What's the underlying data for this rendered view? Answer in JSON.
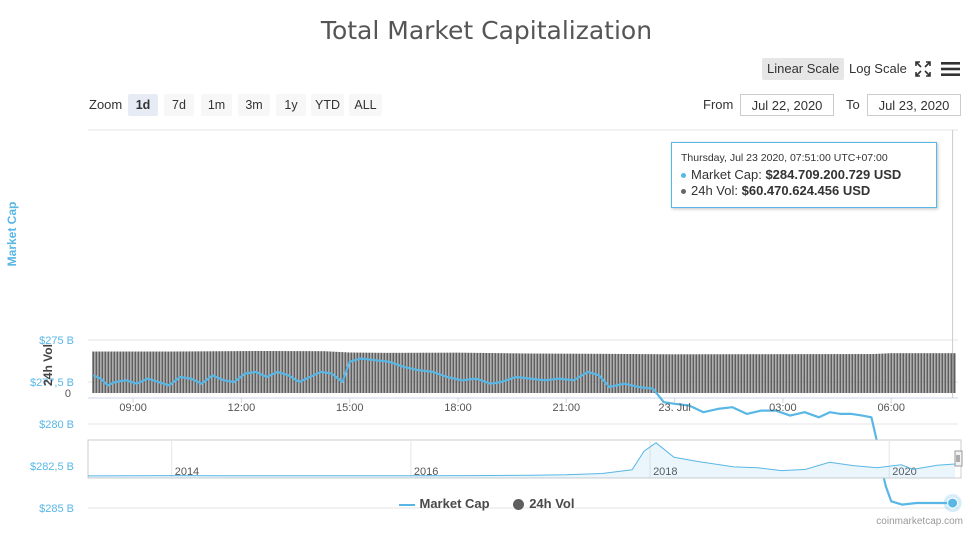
{
  "title": "Total Market Capitalization",
  "scale_buttons": {
    "linear": "Linear Scale",
    "log": "Log Scale"
  },
  "zoom": {
    "label": "Zoom",
    "buttons": [
      "1d",
      "7d",
      "1m",
      "3m",
      "1y",
      "YTD",
      "ALL"
    ],
    "active": "1d"
  },
  "range": {
    "from_label": "From",
    "from_value": "Jul 22, 2020",
    "to_label": "To",
    "to_value": "Jul 23, 2020"
  },
  "tooltip": {
    "date": "Thursday, Jul 23 2020, 07:51:00 UTC+07:00",
    "market_cap_label": "Market Cap:",
    "market_cap_value": "$284.709.200.729 USD",
    "volume_label": "24h Vol:",
    "volume_value": "$60.470.624.456 USD",
    "market_cap_color": "#59b7e6",
    "volume_color": "#666666"
  },
  "legend": {
    "market_cap": "Market Cap",
    "volume": "24h Vol"
  },
  "credit": "coinmarketcap.com",
  "colors": {
    "market_cap": "#59b7e6",
    "volume_bars": "#5f5f5f",
    "grid": "#e6e6e6",
    "axis_blue": "#59b7e6"
  },
  "icons": {
    "expand": "expand-icon",
    "menu": "hamburger-menu-icon"
  },
  "chart_data": {
    "type": "line",
    "title": "Total Market Capitalization",
    "ylabel": "Market Cap",
    "ylabel2": "24h Vol",
    "y_ticks": [
      "$285 B",
      "$282,5 B",
      "$280 B",
      "$277,5 B",
      "$275 B"
    ],
    "y_tick_values": [
      285,
      282.5,
      280,
      277.5,
      275
    ],
    "ylim": [
      275,
      286
    ],
    "y2_ticks": [
      "0"
    ],
    "x_ticks": [
      "09:00",
      "12:00",
      "15:00",
      "18:00",
      "21:00",
      "23. Jul",
      "03:00",
      "06:00"
    ],
    "x_tick_hours": [
      9,
      12,
      15,
      18,
      21,
      24,
      27,
      30
    ],
    "xlim_hours": [
      7.75,
      31.85
    ],
    "series": [
      {
        "name": "Market Cap",
        "unit": "billion USD",
        "x_hours": [
          7.9,
          8.1,
          8.3,
          8.5,
          8.8,
          9.1,
          9.4,
          9.7,
          10.0,
          10.3,
          10.6,
          10.9,
          11.2,
          11.5,
          11.8,
          12.1,
          12.4,
          12.7,
          13.0,
          13.3,
          13.6,
          13.9,
          14.2,
          14.5,
          14.8,
          15.0,
          15.3,
          15.7,
          16.1,
          16.5,
          16.9,
          17.3,
          17.7,
          18.1,
          18.5,
          18.9,
          19.2,
          19.6,
          20.0,
          20.4,
          20.8,
          21.2,
          21.6,
          21.9,
          22.2,
          22.6,
          23.0,
          23.4,
          23.7,
          24.0,
          24.4,
          24.8,
          25.2,
          25.6,
          26.0,
          26.4,
          26.8,
          27.2,
          27.6,
          28.0,
          28.3,
          28.6,
          28.9,
          29.2,
          29.45,
          29.6,
          29.75,
          29.85,
          30.0,
          30.3,
          30.7,
          31.1,
          31.5,
          31.7
        ],
        "values": [
          277.1,
          277.3,
          277.7,
          277.5,
          277.4,
          277.6,
          277.3,
          277.5,
          277.7,
          277.2,
          277.3,
          277.6,
          277.1,
          277.4,
          277.5,
          277.0,
          276.9,
          277.2,
          276.9,
          277.1,
          277.5,
          277.2,
          276.9,
          277.0,
          277.5,
          276.3,
          276.1,
          276.2,
          276.3,
          276.6,
          276.8,
          276.9,
          277.2,
          277.4,
          277.3,
          277.6,
          277.5,
          277.2,
          277.3,
          277.4,
          277.3,
          277.4,
          276.9,
          277.1,
          277.8,
          277.6,
          277.8,
          277.9,
          278.7,
          278.8,
          278.9,
          279.3,
          279.1,
          279.0,
          279.4,
          279.2,
          279.2,
          279.5,
          279.3,
          279.6,
          279.3,
          279.4,
          279.4,
          279.5,
          279.6,
          281.0,
          282.8,
          283.7,
          284.6,
          284.8,
          284.7,
          284.7,
          284.7,
          284.7
        ],
        "highlight": {
          "x_hours": 31.7,
          "value": 284.709200729
        }
      },
      {
        "name": "24h Vol",
        "unit": "billion USD",
        "x_hours_range": [
          7.9,
          31.75
        ],
        "values_start_end": [
          [
            7.9,
            63.0
          ],
          [
            10.0,
            63.0
          ],
          [
            12.5,
            63.8
          ],
          [
            14.3,
            63.5
          ],
          [
            15.0,
            61.5
          ],
          [
            16.0,
            61.0
          ],
          [
            18.0,
            61.3
          ],
          [
            20.0,
            60.0
          ],
          [
            22.0,
            59.5
          ],
          [
            24.0,
            58.8
          ],
          [
            27.0,
            59.0
          ],
          [
            29.5,
            59.2
          ],
          [
            30.0,
            60.5
          ],
          [
            31.75,
            60.47
          ]
        ]
      }
    ],
    "navigator": {
      "x_ticks": [
        "2014",
        "2016",
        "2018",
        "2020"
      ],
      "x_years": [
        2014,
        2016,
        2018,
        2020
      ],
      "xlim_years": [
        2013.3,
        2020.6
      ],
      "years": [
        2013.3,
        2014.0,
        2014.5,
        2015.0,
        2015.5,
        2016.0,
        2016.5,
        2017.0,
        2017.3,
        2017.6,
        2017.85,
        2017.95,
        2018.05,
        2018.2,
        2018.4,
        2018.7,
        2018.9,
        2019.1,
        2019.3,
        2019.5,
        2019.7,
        2019.9,
        2020.1,
        2020.2,
        2020.4,
        2020.55
      ],
      "market_cap_billions": [
        1.5,
        10,
        6,
        4,
        4,
        6,
        10,
        17,
        30,
        60,
        150,
        600,
        800,
        450,
        350,
        220,
        200,
        130,
        160,
        330,
        250,
        200,
        270,
        160,
        260,
        290
      ]
    }
  }
}
